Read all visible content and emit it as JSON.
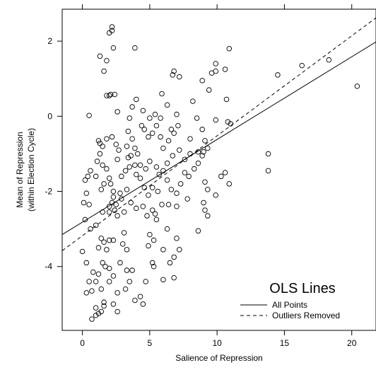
{
  "chart_data": {
    "type": "scatter",
    "xlabel": "Salience of Repression",
    "ylabel_lines": [
      "Mean of Repression",
      "(within Election Cycle)"
    ],
    "xlim": [
      -1.5,
      21.8
    ],
    "ylim": [
      -5.7,
      2.85
    ],
    "x_ticks": [
      0,
      5,
      10,
      15,
      20
    ],
    "y_ticks": [
      -4,
      -2,
      0,
      2
    ],
    "x_tick_labels": [
      "0",
      "5",
      "10",
      "15",
      "20"
    ],
    "y_tick_labels": [
      "-4",
      "-2",
      "0",
      "2"
    ],
    "grid": false,
    "legend": {
      "title": "OLS Lines",
      "placement": "bottom-right",
      "entries": [
        {
          "label": "All Points",
          "style": "solid"
        },
        {
          "label": "Outliers Removed",
          "style": "dashed"
        }
      ]
    },
    "lines": [
      {
        "name": "All Points",
        "style": "solid",
        "x": [
          -1.5,
          21.8
        ],
        "y": [
          -3.15,
          1.98
        ]
      },
      {
        "name": "Outliers Removed",
        "style": "dashed",
        "x": [
          -1.5,
          21.8
        ],
        "y": [
          -3.58,
          2.62
        ]
      }
    ],
    "points": [
      [
        2.2,
        2.38
      ],
      [
        2.0,
        2.22
      ],
      [
        2.2,
        2.28
      ],
      [
        2.3,
        1.82
      ],
      [
        1.3,
        1.6
      ],
      [
        1.8,
        1.48
      ],
      [
        3.9,
        1.82
      ],
      [
        1.6,
        1.2
      ],
      [
        1.8,
        0.55
      ],
      [
        2.1,
        0.58
      ],
      [
        2.4,
        0.58
      ],
      [
        2.0,
        0.55
      ],
      [
        0.5,
        0.02
      ],
      [
        2.6,
        0.12
      ],
      [
        1.2,
        -0.65
      ],
      [
        1.3,
        -0.72
      ],
      [
        1.5,
        -0.8
      ],
      [
        1.3,
        -1.0
      ],
      [
        1.8,
        -0.6
      ],
      [
        2.2,
        -0.55
      ],
      [
        2.5,
        -0.75
      ],
      [
        2.7,
        -0.9
      ],
      [
        2.6,
        -1.15
      ],
      [
        1.5,
        -1.3
      ],
      [
        1.8,
        -1.4
      ],
      [
        1.1,
        -1.2
      ],
      [
        1.0,
        -1.6
      ],
      [
        1.6,
        -1.8
      ],
      [
        1.4,
        -1.95
      ],
      [
        2.0,
        -1.65
      ],
      [
        2.1,
        -1.8
      ],
      [
        2.3,
        -2.0
      ],
      [
        2.3,
        -2.15
      ],
      [
        2.8,
        -2.05
      ],
      [
        2.0,
        -2.4
      ],
      [
        2.4,
        -2.5
      ],
      [
        2.6,
        -2.65
      ],
      [
        2.0,
        -2.55
      ],
      [
        2.2,
        -2.3
      ],
      [
        2.5,
        -2.35
      ],
      [
        1.5,
        -2.55
      ],
      [
        0.6,
        -1.45
      ],
      [
        0.4,
        -1.6
      ],
      [
        0.2,
        -1.7
      ],
      [
        0.3,
        -2.05
      ],
      [
        0.1,
        -2.3
      ],
      [
        0.5,
        -2.35
      ],
      [
        0.2,
        -2.75
      ],
      [
        0.6,
        -3.0
      ],
      [
        1.0,
        -2.9
      ],
      [
        1.4,
        -3.25
      ],
      [
        1.6,
        -3.35
      ],
      [
        1.2,
        -3.5
      ],
      [
        2.0,
        -3.3
      ],
      [
        2.3,
        -3.3
      ],
      [
        1.8,
        -3.55
      ],
      [
        0.0,
        -3.6
      ],
      [
        0.3,
        -3.9
      ],
      [
        0.8,
        -4.15
      ],
      [
        0.5,
        -4.4
      ],
      [
        0.3,
        -4.7
      ],
      [
        0.7,
        -4.65
      ],
      [
        1.0,
        -4.4
      ],
      [
        1.2,
        -4.2
      ],
      [
        1.5,
        -3.9
      ],
      [
        1.7,
        -4.0
      ],
      [
        2.0,
        -4.05
      ],
      [
        1.4,
        -4.6
      ],
      [
        1.6,
        -4.95
      ],
      [
        1.0,
        -5.1
      ],
      [
        1.2,
        -5.25
      ],
      [
        1.4,
        -5.2
      ],
      [
        1.6,
        -5.05
      ],
      [
        0.7,
        -5.4
      ],
      [
        1.0,
        -5.3
      ],
      [
        2.0,
        -4.4
      ],
      [
        2.3,
        -4.25
      ],
      [
        2.6,
        -4.7
      ],
      [
        2.3,
        -5.0
      ],
      [
        2.6,
        -5.2
      ],
      [
        3.1,
        -3.1
      ],
      [
        3.0,
        -3.4
      ],
      [
        2.8,
        -3.9
      ],
      [
        3.3,
        -3.55
      ],
      [
        3.3,
        -4.1
      ],
      [
        3.5,
        -4.4
      ],
      [
        3.7,
        -4.1
      ],
      [
        3.2,
        -4.6
      ],
      [
        3.9,
        -4.9
      ],
      [
        4.3,
        -4.8
      ],
      [
        4.5,
        -5.0
      ],
      [
        4.7,
        -4.4
      ],
      [
        5.2,
        -3.9
      ],
      [
        5.3,
        -4.0
      ],
      [
        4.9,
        -3.45
      ],
      [
        5.0,
        -3.15
      ],
      [
        5.3,
        -3.3
      ],
      [
        5.5,
        -2.75
      ],
      [
        5.2,
        -2.5
      ],
      [
        6.3,
        -3.0
      ],
      [
        6.0,
        -3.55
      ],
      [
        6.5,
        -3.9
      ],
      [
        6.8,
        -4.3
      ],
      [
        6.0,
        -4.35
      ],
      [
        6.8,
        -3.75
      ],
      [
        7.2,
        -3.55
      ],
      [
        7.0,
        -3.25
      ],
      [
        8.6,
        -3.05
      ],
      [
        9.3,
        -2.65
      ],
      [
        9.1,
        -2.5
      ],
      [
        3.3,
        -0.8
      ],
      [
        3.4,
        -1.1
      ],
      [
        3.5,
        -1.35
      ],
      [
        3.6,
        -1.05
      ],
      [
        3.9,
        -0.85
      ],
      [
        3.7,
        -0.6
      ],
      [
        3.4,
        -0.4
      ],
      [
        3.5,
        -0.05
      ],
      [
        3.7,
        0.25
      ],
      [
        4.0,
        0.45
      ],
      [
        4.4,
        -0.25
      ],
      [
        4.6,
        -0.35
      ],
      [
        4.9,
        -0.55
      ],
      [
        5.2,
        -0.45
      ],
      [
        5.5,
        -0.25
      ],
      [
        5.8,
        -0.55
      ],
      [
        6.0,
        -0.85
      ],
      [
        6.4,
        -0.65
      ],
      [
        6.6,
        -0.35
      ],
      [
        6.8,
        -0.45
      ],
      [
        7.1,
        -0.25
      ],
      [
        7.0,
        0.05
      ],
      [
        7.2,
        1.05
      ],
      [
        6.7,
        1.1
      ],
      [
        6.8,
        1.2
      ],
      [
        5.9,
        0.6
      ],
      [
        6.3,
        0.3
      ],
      [
        5.4,
        0.05
      ],
      [
        5.8,
        -0.05
      ],
      [
        8.2,
        0.4
      ],
      [
        8.5,
        -0.05
      ],
      [
        8.9,
        -0.35
      ],
      [
        9.1,
        -0.65
      ],
      [
        9.3,
        -0.85
      ],
      [
        9.0,
        -0.95
      ],
      [
        8.6,
        -0.95
      ],
      [
        8.0,
        -1.0
      ],
      [
        7.6,
        -1.15
      ],
      [
        7.2,
        -0.9
      ],
      [
        6.7,
        -1.05
      ],
      [
        6.3,
        -1.25
      ],
      [
        6.0,
        -1.45
      ],
      [
        5.7,
        -1.55
      ],
      [
        5.5,
        -1.35
      ],
      [
        5.0,
        -1.2
      ],
      [
        4.7,
        -1.4
      ],
      [
        4.3,
        -1.3
      ],
      [
        4.1,
        -1.0
      ],
      [
        3.9,
        -1.3
      ],
      [
        4.0,
        -1.55
      ],
      [
        4.3,
        -1.65
      ],
      [
        4.6,
        -1.9
      ],
      [
        4.9,
        -2.1
      ],
      [
        5.2,
        -1.9
      ],
      [
        5.6,
        -2.0
      ],
      [
        6.3,
        -1.7
      ],
      [
        6.6,
        -1.95
      ],
      [
        7.0,
        -2.05
      ],
      [
        7.3,
        -1.8
      ],
      [
        7.6,
        -1.5
      ],
      [
        7.9,
        -1.6
      ],
      [
        8.3,
        -1.4
      ],
      [
        8.6,
        -1.25
      ],
      [
        8.9,
        -1.05
      ],
      [
        9.1,
        -1.75
      ],
      [
        9.3,
        -1.95
      ],
      [
        9.9,
        -2.1
      ],
      [
        10.3,
        -1.6
      ],
      [
        10.9,
        -1.8
      ],
      [
        10.6,
        -1.5
      ],
      [
        9.0,
        -2.3
      ],
      [
        7.8,
        -2.2
      ],
      [
        7.0,
        -2.4
      ],
      [
        6.4,
        -2.35
      ],
      [
        5.9,
        -2.35
      ],
      [
        5.4,
        -2.6
      ],
      [
        4.8,
        -2.65
      ],
      [
        4.5,
        -2.4
      ],
      [
        4.0,
        -2.45
      ],
      [
        3.6,
        -2.3
      ],
      [
        3.1,
        -2.55
      ],
      [
        2.9,
        -2.2
      ],
      [
        3.3,
        -1.95
      ],
      [
        2.9,
        -1.6
      ],
      [
        3.2,
        -1.45
      ],
      [
        9.4,
        0.7
      ],
      [
        9.6,
        1.15
      ],
      [
        9.9,
        1.2
      ],
      [
        9.9,
        1.4
      ],
      [
        10.6,
        1.25
      ],
      [
        10.9,
        1.8
      ],
      [
        10.7,
        0.45
      ],
      [
        10.8,
        -0.15
      ],
      [
        11.0,
        -0.2
      ],
      [
        13.8,
        -1.0
      ],
      [
        13.8,
        -1.45
      ],
      [
        14.5,
        1.1
      ],
      [
        16.3,
        1.35
      ],
      [
        18.3,
        1.5
      ],
      [
        20.4,
        0.8
      ],
      [
        9.9,
        -0.1
      ],
      [
        8.9,
        0.95
      ],
      [
        8.0,
        -0.6
      ],
      [
        4.5,
        0.15
      ],
      [
        5.0,
        -0.05
      ]
    ]
  }
}
